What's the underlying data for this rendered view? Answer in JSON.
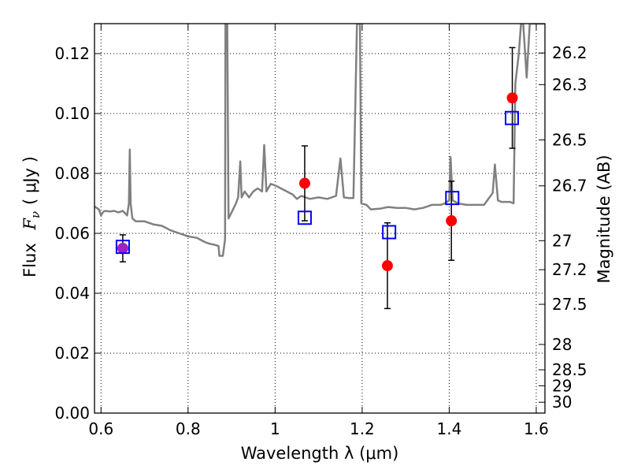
{
  "chart_data": {
    "type": "scatter",
    "title": "",
    "xlabel": "Wavelength  λ (μm)",
    "ylabel_left": {
      "prefix": "Flux",
      "symbol": "F",
      "subscript": "ν",
      "unit": "( μJy )"
    },
    "ylabel_right": "Magnitude (AB)",
    "xlim": [
      0.585,
      1.62
    ],
    "ylim": [
      0.0,
      0.13
    ],
    "grid": true,
    "x_ticks": [
      {
        "value": 0.6,
        "label": "0.6"
      },
      {
        "value": 0.8,
        "label": "0.8"
      },
      {
        "value": 1.0,
        "label": "1"
      },
      {
        "value": 1.2,
        "label": "1.2"
      },
      {
        "value": 1.4,
        "label": "1.4"
      },
      {
        "value": 1.6,
        "label": "1.6"
      }
    ],
    "y_ticks": [
      {
        "value": 0.0,
        "label": "0.00"
      },
      {
        "value": 0.02,
        "label": "0.02"
      },
      {
        "value": 0.04,
        "label": "0.04"
      },
      {
        "value": 0.06,
        "label": "0.06"
      },
      {
        "value": 0.08,
        "label": "0.08"
      },
      {
        "value": 0.1,
        "label": "0.10"
      },
      {
        "value": 0.12,
        "label": "0.12"
      }
    ],
    "right_ticks": [
      {
        "mag": 26.2,
        "label": "26.2"
      },
      {
        "mag": 26.3,
        "label": "26.3"
      },
      {
        "mag": 26.5,
        "label": "26.5"
      },
      {
        "mag": 26.7,
        "label": "26.7"
      },
      {
        "mag": 27.0,
        "label": "27"
      },
      {
        "mag": 27.2,
        "label": "27.2"
      },
      {
        "mag": 27.5,
        "label": "27.5"
      },
      {
        "mag": 28.0,
        "label": "28"
      },
      {
        "mag": 28.5,
        "label": "28.5"
      },
      {
        "mag": 29.0,
        "label": "29"
      },
      {
        "mag": 30.0,
        "label": "30"
      }
    ],
    "series": [
      {
        "kind": "line",
        "color": "#808080",
        "points": [
          [
            0.585,
            0.069
          ],
          [
            0.595,
            0.068
          ],
          [
            0.6,
            0.066
          ],
          [
            0.605,
            0.0672
          ],
          [
            0.61,
            0.0675
          ],
          [
            0.62,
            0.0673
          ],
          [
            0.63,
            0.0675
          ],
          [
            0.64,
            0.067
          ],
          [
            0.65,
            0.0675
          ],
          [
            0.66,
            0.066
          ],
          [
            0.664,
            0.07
          ],
          [
            0.666,
            0.088
          ],
          [
            0.668,
            0.07
          ],
          [
            0.672,
            0.065
          ],
          [
            0.68,
            0.064
          ],
          [
            0.7,
            0.064
          ],
          [
            0.72,
            0.063
          ],
          [
            0.74,
            0.0625
          ],
          [
            0.76,
            0.061
          ],
          [
            0.78,
            0.06
          ],
          [
            0.8,
            0.059
          ],
          [
            0.82,
            0.0585
          ],
          [
            0.84,
            0.057
          ],
          [
            0.85,
            0.0565
          ],
          [
            0.86,
            0.0562
          ],
          [
            0.87,
            0.0558
          ],
          [
            0.872,
            0.0525
          ],
          [
            0.88,
            0.0525
          ],
          [
            0.885,
            0.058
          ],
          [
            0.886,
            0.13
          ],
          [
            0.89,
            0.13
          ],
          [
            0.893,
            0.065
          ],
          [
            0.9,
            0.067
          ],
          [
            0.91,
            0.07
          ],
          [
            0.915,
            0.072
          ],
          [
            0.92,
            0.084
          ],
          [
            0.923,
            0.072
          ],
          [
            0.93,
            0.074
          ],
          [
            0.94,
            0.072
          ],
          [
            0.95,
            0.074
          ],
          [
            0.96,
            0.075
          ],
          [
            0.97,
            0.074
          ],
          [
            0.975,
            0.0895
          ],
          [
            0.98,
            0.074
          ],
          [
            0.99,
            0.0765
          ],
          [
            1.0,
            0.076
          ],
          [
            1.02,
            0.0745
          ],
          [
            1.04,
            0.073
          ],
          [
            1.05,
            0.0715
          ],
          [
            1.06,
            0.0725
          ],
          [
            1.08,
            0.0715
          ],
          [
            1.1,
            0.072
          ],
          [
            1.12,
            0.0715
          ],
          [
            1.14,
            0.0725
          ],
          [
            1.15,
            0.085
          ],
          [
            1.158,
            0.072
          ],
          [
            1.17,
            0.0718
          ],
          [
            1.18,
            0.0718
          ],
          [
            1.188,
            0.13
          ],
          [
            1.195,
            0.13
          ],
          [
            1.198,
            0.07
          ],
          [
            1.21,
            0.0695
          ],
          [
            1.22,
            0.068
          ],
          [
            1.24,
            0.0682
          ],
          [
            1.26,
            0.0688
          ],
          [
            1.28,
            0.0685
          ],
          [
            1.3,
            0.0685
          ],
          [
            1.32,
            0.068
          ],
          [
            1.34,
            0.0685
          ],
          [
            1.36,
            0.0695
          ],
          [
            1.38,
            0.0695
          ],
          [
            1.39,
            0.07
          ],
          [
            1.4,
            0.071
          ],
          [
            1.403,
            0.0855
          ],
          [
            1.408,
            0.071
          ],
          [
            1.42,
            0.07
          ],
          [
            1.44,
            0.0695
          ],
          [
            1.46,
            0.0695
          ],
          [
            1.48,
            0.0695
          ],
          [
            1.5,
            0.0735
          ],
          [
            1.505,
            0.083
          ],
          [
            1.512,
            0.071
          ],
          [
            1.52,
            0.0705
          ],
          [
            1.54,
            0.0705
          ],
          [
            1.548,
            0.07
          ],
          [
            1.552,
            0.11
          ],
          [
            1.56,
            0.12
          ],
          [
            1.565,
            0.13
          ],
          [
            1.57,
            0.13
          ],
          [
            1.578,
            0.112
          ],
          [
            1.585,
            0.13
          ],
          [
            1.62,
            0.13
          ]
        ]
      },
      {
        "kind": "points",
        "marker": "circle",
        "color": "#ff0000",
        "points": [
          {
            "x": 0.65,
            "y": 0.055,
            "err": 0.0045,
            "color": "#a020c0"
          },
          {
            "x": 1.068,
            "y": 0.0767,
            "err": 0.0125
          },
          {
            "x": 1.258,
            "y": 0.0492,
            "err": 0.0143
          },
          {
            "x": 1.405,
            "y": 0.0642,
            "err": 0.0132
          },
          {
            "x": 1.545,
            "y": 0.1052,
            "err": 0.0168
          }
        ]
      },
      {
        "kind": "points",
        "marker": "square",
        "color": "#0000ff",
        "points": [
          {
            "x": 0.65,
            "y": 0.0555
          },
          {
            "x": 1.068,
            "y": 0.0652
          },
          {
            "x": 1.262,
            "y": 0.0604
          },
          {
            "x": 1.407,
            "y": 0.0718
          },
          {
            "x": 1.544,
            "y": 0.0985
          }
        ]
      }
    ]
  }
}
